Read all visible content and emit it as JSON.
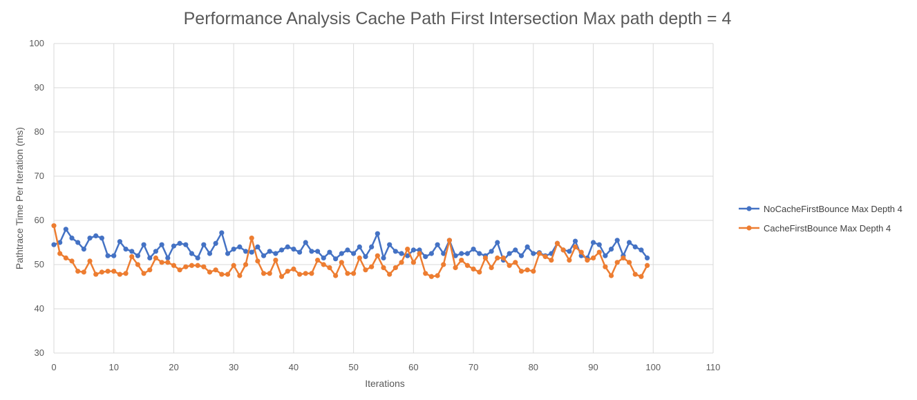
{
  "chart_data": {
    "type": "line",
    "title": "Performance Analysis Cache Path First Intersection Max path depth = 4",
    "xlabel": "Iterations",
    "ylabel": "Pathtrace Time Per Iteration (ms)",
    "xlim": [
      0,
      110
    ],
    "ylim": [
      30,
      100
    ],
    "x_ticks": [
      0,
      10,
      20,
      30,
      40,
      50,
      60,
      70,
      80,
      90,
      100,
      110
    ],
    "y_ticks": [
      30,
      40,
      50,
      60,
      70,
      80,
      90,
      100
    ],
    "grid": true,
    "legend_position": "right",
    "series": [
      {
        "name": "NoCacheFirstBounce Max Depth 4",
        "color": "#4472C4",
        "values": [
          54.5,
          55.0,
          58.0,
          56.0,
          55.0,
          53.5,
          56.0,
          56.5,
          56.0,
          52.0,
          52.0,
          55.2,
          53.5,
          53.0,
          52.0,
          54.5,
          51.5,
          53.0,
          54.5,
          51.5,
          54.2,
          54.8,
          54.5,
          52.5,
          51.5,
          54.5,
          52.5,
          54.8,
          57.2,
          52.5,
          53.5,
          54.0,
          53.0,
          52.8,
          54.0,
          52.0,
          53.0,
          52.5,
          53.3,
          54.0,
          53.5,
          52.8,
          55.0,
          53.0,
          53.0,
          51.5,
          52.8,
          51.3,
          52.5,
          53.3,
          52.5,
          54.0,
          51.8,
          54.0,
          57.0,
          51.5,
          54.5,
          53.0,
          52.5,
          52.0,
          53.3,
          53.3,
          51.8,
          52.5,
          54.5,
          52.5,
          55.5,
          52.0,
          52.5,
          52.5,
          53.5,
          52.5,
          52.0,
          53.0,
          55.0,
          51.0,
          52.5,
          53.3,
          52.0,
          54.0,
          52.5,
          52.7,
          52.0,
          52.5,
          54.8,
          53.3,
          53.0,
          55.3,
          52.0,
          51.5,
          55.0,
          54.5,
          52.0,
          53.5,
          55.5,
          52.0,
          55.0,
          54.0,
          53.3,
          51.5
        ]
      },
      {
        "name": "CacheFirstBounce Max Depth 4",
        "color": "#ED7D31",
        "values": [
          58.8,
          52.5,
          51.5,
          50.8,
          48.5,
          48.3,
          50.8,
          47.8,
          48.3,
          48.5,
          48.5,
          47.8,
          48.0,
          51.8,
          50.0,
          48.0,
          48.8,
          51.5,
          50.5,
          50.5,
          49.8,
          48.8,
          49.5,
          49.8,
          49.8,
          49.5,
          48.3,
          48.8,
          47.8,
          47.8,
          49.8,
          47.5,
          50.0,
          56.0,
          50.8,
          48.0,
          48.0,
          51.0,
          47.3,
          48.5,
          49.0,
          47.8,
          48.0,
          48.0,
          51.0,
          50.0,
          49.3,
          47.5,
          50.5,
          48.0,
          48.0,
          51.5,
          48.8,
          49.5,
          52.0,
          49.3,
          47.8,
          49.3,
          50.5,
          53.5,
          50.5,
          52.5,
          48.0,
          47.3,
          47.5,
          50.0,
          55.5,
          49.3,
          51.0,
          49.8,
          49.0,
          48.3,
          51.5,
          49.3,
          51.5,
          51.5,
          49.8,
          50.5,
          48.5,
          48.8,
          48.5,
          52.5,
          51.8,
          51.0,
          54.8,
          53.3,
          51.0,
          54.0,
          52.8,
          51.0,
          51.5,
          52.8,
          49.5,
          47.5,
          50.5,
          51.5,
          50.5,
          47.8,
          47.3,
          49.8
        ]
      }
    ]
  }
}
